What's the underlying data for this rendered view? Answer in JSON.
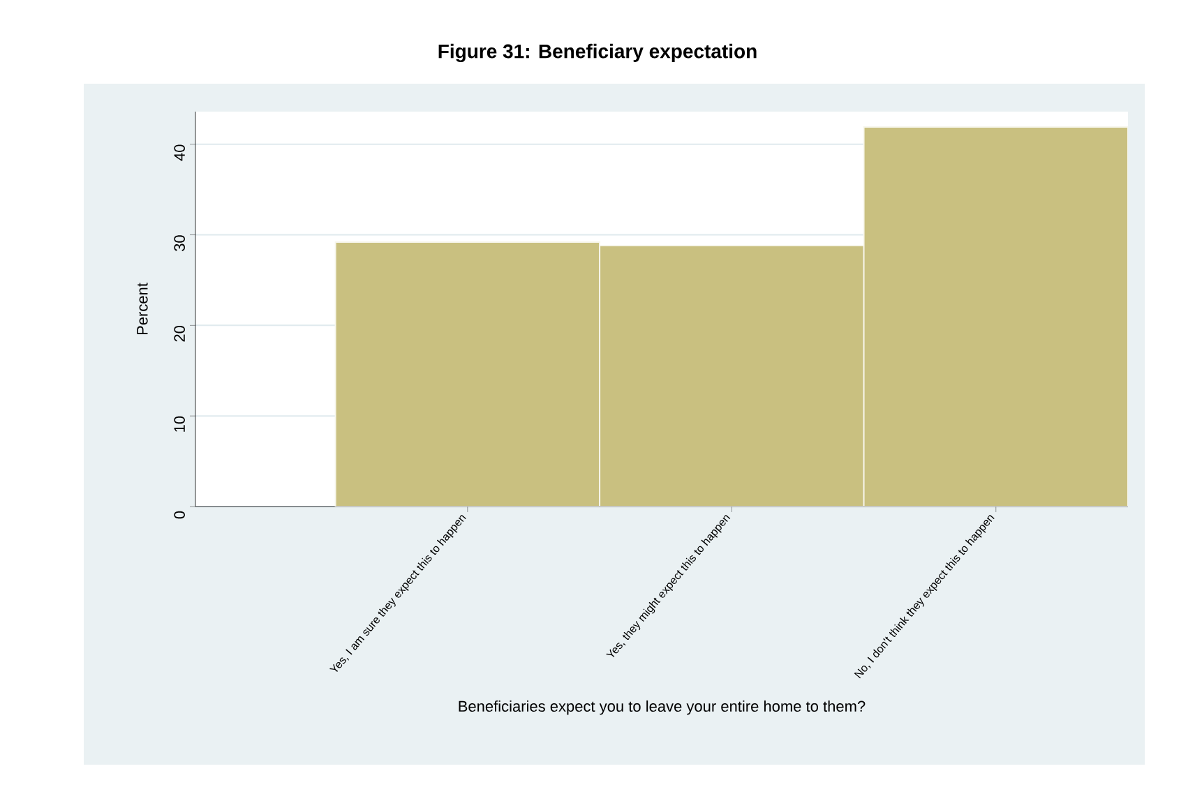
{
  "chart_data": {
    "type": "bar",
    "title": "Figure 31: Beneficiary expectation",
    "xlabel": "Beneficiaries expect you to leave your entire home to them?",
    "ylabel": "Percent",
    "categories": [
      "Yes, I am sure they expect this to happen",
      "Yes, they might expect this to happen",
      "No, I don't think they expect this to happen"
    ],
    "values": [
      29.2,
      28.8,
      41.9
    ],
    "color": "#c9c080",
    "ylim": [
      0,
      43.6
    ],
    "yticks": [
      0,
      10,
      20,
      30,
      40
    ],
    "grid": "y"
  }
}
